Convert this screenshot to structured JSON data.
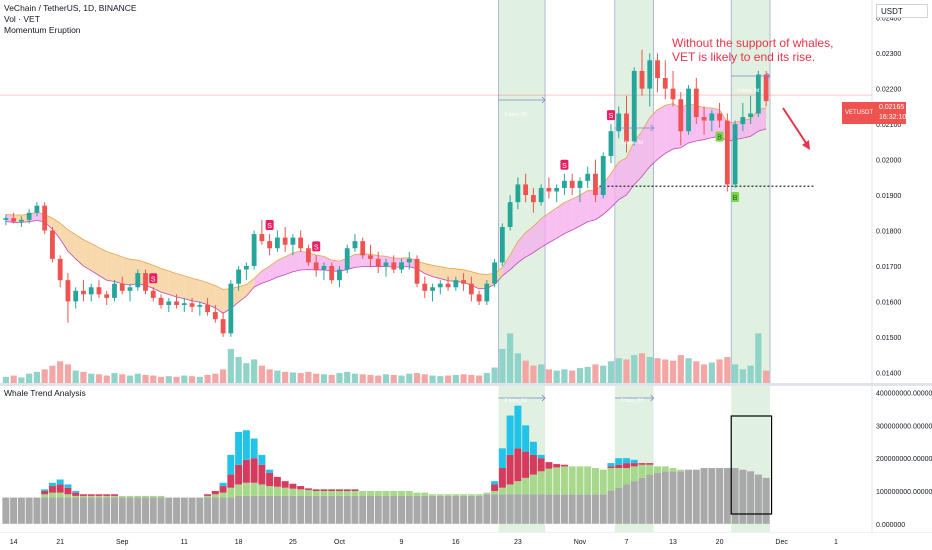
{
  "header": {
    "symbol_line": "VeChain / TetherUS, 1D, BINANCE",
    "indicator_1": "Vol · VET",
    "indicator_2": "Momentum Eruption",
    "currency_button": "USDT"
  },
  "annotation": {
    "line1": "Without the support of whales,",
    "line2": "VET is likely to end its rise."
  },
  "price_tag": {
    "symbol": "VETUSDT",
    "price": "0.02165",
    "countdown": "16:32:10"
  },
  "sub_pane": {
    "title": "Whale Trend Analysis"
  },
  "colors": {
    "up": "#26a69a",
    "down": "#ef5350",
    "cloud": "#f5cf98",
    "cloud_pink": "#f5b0ee",
    "cyan": "#22c3e8",
    "crimson": "#d63a5c",
    "lime": "#a7d88b",
    "gray": "#a9a9a9",
    "zone": "#c8e6c9",
    "annotation": "#e8334a",
    "signal_s": "#e91e63",
    "signal_b": "#7cd64a"
  },
  "chart_data": [
    {
      "type": "candlestick",
      "title": "VeChain / TetherUS, 1D, BINANCE",
      "y_axis_ticks": [
        "0.01400",
        "0.01500",
        "0.01600",
        "0.01700",
        "0.01800",
        "0.01900",
        "0.02000",
        "0.02100",
        "0.02200",
        "0.02300",
        "0.02400"
      ],
      "ylim": [
        0.0137,
        0.0245
      ],
      "x_axis_ticks": [
        "14",
        "21",
        "Sep",
        "11",
        "18",
        "25",
        "Oct",
        "9",
        "16",
        "23",
        "Nov",
        "7",
        "13",
        "20",
        "Dec",
        "1"
      ],
      "last_price": 0.02165,
      "candles": [
        [
          0.0183,
          0.01845,
          0.01815,
          0.01835
        ],
        [
          0.01835,
          0.0185,
          0.0182,
          0.01825
        ],
        [
          0.01825,
          0.0184,
          0.0181,
          0.0183
        ],
        [
          0.0183,
          0.0186,
          0.0182,
          0.0185
        ],
        [
          0.0185,
          0.0188,
          0.0184,
          0.0187
        ],
        [
          0.0187,
          0.0188,
          0.0179,
          0.018
        ],
        [
          0.018,
          0.0181,
          0.0171,
          0.0172
        ],
        [
          0.0172,
          0.0173,
          0.0164,
          0.0166
        ],
        [
          0.0166,
          0.0168,
          0.0154,
          0.016
        ],
        [
          0.016,
          0.0164,
          0.0158,
          0.0163
        ],
        [
          0.0163,
          0.0166,
          0.016,
          0.0162
        ],
        [
          0.0162,
          0.0165,
          0.016,
          0.0164
        ],
        [
          0.0164,
          0.0166,
          0.0161,
          0.0162
        ],
        [
          0.0162,
          0.0163,
          0.0159,
          0.0161
        ],
        [
          0.0161,
          0.0166,
          0.016,
          0.0165
        ],
        [
          0.0165,
          0.0167,
          0.0162,
          0.0163
        ],
        [
          0.0163,
          0.0165,
          0.016,
          0.0164
        ],
        [
          0.0164,
          0.0169,
          0.0163,
          0.0168
        ],
        [
          0.0168,
          0.0169,
          0.0162,
          0.0163
        ],
        [
          0.0163,
          0.0164,
          0.016,
          0.0161
        ],
        [
          0.0161,
          0.0162,
          0.0158,
          0.0159
        ],
        [
          0.0159,
          0.0161,
          0.0157,
          0.016
        ],
        [
          0.016,
          0.0162,
          0.0158,
          0.0159
        ],
        [
          0.0159,
          0.0161,
          0.0157,
          0.01595
        ],
        [
          0.01595,
          0.0161,
          0.0157,
          0.01585
        ],
        [
          0.01585,
          0.016,
          0.0156,
          0.0159
        ],
        [
          0.0159,
          0.0161,
          0.0156,
          0.0157
        ],
        [
          0.0157,
          0.0159,
          0.0154,
          0.0155
        ],
        [
          0.0155,
          0.0157,
          0.015,
          0.0151
        ],
        [
          0.0151,
          0.0166,
          0.015,
          0.0165
        ],
        [
          0.0165,
          0.017,
          0.0163,
          0.0169
        ],
        [
          0.0169,
          0.0171,
          0.0166,
          0.017
        ],
        [
          0.017,
          0.018,
          0.0169,
          0.0179
        ],
        [
          0.0179,
          0.0183,
          0.0176,
          0.0177
        ],
        [
          0.0177,
          0.0179,
          0.0173,
          0.0175
        ],
        [
          0.0175,
          0.018,
          0.0174,
          0.0178
        ],
        [
          0.0178,
          0.0181,
          0.0174,
          0.0176
        ],
        [
          0.0176,
          0.0179,
          0.0173,
          0.0178
        ],
        [
          0.0178,
          0.018,
          0.0174,
          0.0175
        ],
        [
          0.0175,
          0.0176,
          0.017,
          0.0171
        ],
        [
          0.0171,
          0.0173,
          0.0167,
          0.0169
        ],
        [
          0.0169,
          0.0171,
          0.0166,
          0.017
        ],
        [
          0.017,
          0.0171,
          0.0165,
          0.0166
        ],
        [
          0.0166,
          0.017,
          0.0164,
          0.0169
        ],
        [
          0.0169,
          0.0176,
          0.0168,
          0.0175
        ],
        [
          0.0175,
          0.0179,
          0.0174,
          0.0177
        ],
        [
          0.0177,
          0.0178,
          0.0172,
          0.0173
        ],
        [
          0.0173,
          0.0176,
          0.017,
          0.0172
        ],
        [
          0.0172,
          0.0174,
          0.0168,
          0.017
        ],
        [
          0.017,
          0.0172,
          0.0167,
          0.0171
        ],
        [
          0.0171,
          0.0173,
          0.0168,
          0.0169
        ],
        [
          0.0169,
          0.0172,
          0.0168,
          0.0171
        ],
        [
          0.0171,
          0.0174,
          0.0169,
          0.0172
        ],
        [
          0.0172,
          0.0173,
          0.0164,
          0.0165
        ],
        [
          0.0165,
          0.0167,
          0.0161,
          0.0163
        ],
        [
          0.0163,
          0.0165,
          0.016,
          0.0164
        ],
        [
          0.0164,
          0.0166,
          0.0162,
          0.0165
        ],
        [
          0.0165,
          0.0167,
          0.0163,
          0.0164
        ],
        [
          0.0164,
          0.0167,
          0.0163,
          0.0166
        ],
        [
          0.0166,
          0.0168,
          0.0163,
          0.0165
        ],
        [
          0.0165,
          0.0167,
          0.016,
          0.0162
        ],
        [
          0.0162,
          0.0163,
          0.0159,
          0.016
        ],
        [
          0.016,
          0.0166,
          0.0159,
          0.0165
        ],
        [
          0.0165,
          0.0172,
          0.0164,
          0.0171
        ],
        [
          0.0171,
          0.0182,
          0.017,
          0.0181
        ],
        [
          0.0181,
          0.019,
          0.018,
          0.0188
        ],
        [
          0.0188,
          0.0195,
          0.0186,
          0.0193
        ],
        [
          0.0193,
          0.0196,
          0.0188,
          0.019
        ],
        [
          0.019,
          0.0192,
          0.0185,
          0.0188
        ],
        [
          0.0188,
          0.0193,
          0.0187,
          0.0192
        ],
        [
          0.0192,
          0.0195,
          0.0189,
          0.0191
        ],
        [
          0.0191,
          0.0193,
          0.0188,
          0.0192
        ],
        [
          0.0192,
          0.0196,
          0.019,
          0.0194
        ],
        [
          0.0194,
          0.0196,
          0.019,
          0.0192
        ],
        [
          0.0192,
          0.0195,
          0.0188,
          0.0194
        ],
        [
          0.0194,
          0.0198,
          0.0192,
          0.0196
        ],
        [
          0.0196,
          0.02,
          0.0188,
          0.019
        ],
        [
          0.019,
          0.0202,
          0.0189,
          0.0201
        ],
        [
          0.0201,
          0.021,
          0.0199,
          0.0208
        ],
        [
          0.0208,
          0.0215,
          0.0206,
          0.0213
        ],
        [
          0.0213,
          0.0218,
          0.0202,
          0.0205
        ],
        [
          0.0205,
          0.0226,
          0.0204,
          0.0225
        ],
        [
          0.0225,
          0.0231,
          0.0218,
          0.022
        ],
        [
          0.022,
          0.023,
          0.0215,
          0.0228
        ],
        [
          0.0228,
          0.023,
          0.0219,
          0.0223
        ],
        [
          0.0223,
          0.0228,
          0.0217,
          0.022
        ],
        [
          0.022,
          0.0225,
          0.0215,
          0.0217
        ],
        [
          0.0217,
          0.0219,
          0.0204,
          0.0208
        ],
        [
          0.0208,
          0.0221,
          0.0207,
          0.022
        ],
        [
          0.022,
          0.0223,
          0.021,
          0.0212
        ],
        [
          0.0212,
          0.0215,
          0.0207,
          0.0211
        ],
        [
          0.0211,
          0.0214,
          0.0208,
          0.0213
        ],
        [
          0.0213,
          0.0216,
          0.0209,
          0.0211
        ],
        [
          0.0211,
          0.0213,
          0.0191,
          0.0193
        ],
        [
          0.0193,
          0.0211,
          0.0192,
          0.021
        ],
        [
          0.021,
          0.0216,
          0.0208,
          0.0212
        ],
        [
          0.0212,
          0.0218,
          0.021,
          0.0213
        ],
        [
          0.0213,
          0.0225,
          0.0212,
          0.0224
        ],
        [
          0.0224,
          0.0225,
          0.0215,
          0.02165
        ]
      ],
      "volume": [
        0.1,
        0.12,
        0.09,
        0.15,
        0.18,
        0.22,
        0.28,
        0.35,
        0.3,
        0.2,
        0.18,
        0.15,
        0.14,
        0.12,
        0.16,
        0.14,
        0.12,
        0.15,
        0.13,
        0.12,
        0.1,
        0.11,
        0.1,
        0.12,
        0.11,
        0.1,
        0.13,
        0.15,
        0.22,
        0.55,
        0.42,
        0.32,
        0.38,
        0.28,
        0.22,
        0.2,
        0.18,
        0.17,
        0.16,
        0.18,
        0.15,
        0.14,
        0.13,
        0.16,
        0.18,
        0.15,
        0.14,
        0.13,
        0.12,
        0.14,
        0.13,
        0.12,
        0.15,
        0.16,
        0.14,
        0.12,
        0.11,
        0.12,
        0.13,
        0.14,
        0.13,
        0.12,
        0.16,
        0.25,
        0.55,
        0.8,
        0.48,
        0.36,
        0.28,
        0.3,
        0.22,
        0.2,
        0.22,
        0.2,
        0.24,
        0.26,
        0.3,
        0.28,
        0.35,
        0.4,
        0.38,
        0.45,
        0.48,
        0.42,
        0.4,
        0.38,
        0.36,
        0.45,
        0.4,
        0.35,
        0.3,
        0.33,
        0.38,
        0.42,
        0.3,
        0.22,
        0.28,
        0.8,
        0.2
      ],
      "signals": [
        {
          "label": "S",
          "index": 19
        },
        {
          "label": "S",
          "index": 34
        },
        {
          "label": "S",
          "index": 40
        },
        {
          "label": "S",
          "index": 72
        },
        {
          "label": "S",
          "index": 78
        },
        {
          "label": "B",
          "index": 92
        },
        {
          "label": "B",
          "index": 94
        }
      ],
      "highlight_zones": [
        [
          64,
          69
        ],
        [
          79,
          83
        ],
        [
          94,
          98
        ]
      ],
      "support_level": 0.01925,
      "zone_labels": [
        "0 bars, 0d",
        "0 bars, 0d",
        "0 bars, 0d"
      ]
    },
    {
      "type": "stacked_bar",
      "title": "Whale Trend Analysis",
      "y_axis_ticks": [
        "0.000000",
        "100000000.000000",
        "200000000.000000",
        "300000000.000000",
        "400000000.000000"
      ],
      "ylim": [
        -25000000,
        420000000
      ],
      "series_colors": [
        "#a9a9a9",
        "#a7d88b",
        "#d63a5c",
        "#22c3e8"
      ],
      "gray": [
        80,
        80,
        80,
        80,
        80,
        80,
        80,
        80,
        80,
        80,
        80,
        80,
        80,
        80,
        80,
        80,
        80,
        80,
        80,
        80,
        80,
        80,
        80,
        80,
        80,
        80,
        80,
        80,
        80,
        80,
        85,
        85,
        85,
        85,
        85,
        85,
        85,
        85,
        85,
        85,
        85,
        85,
        85,
        85,
        85,
        85,
        85,
        85,
        85,
        85,
        85,
        85,
        85,
        85,
        85,
        85,
        85,
        85,
        85,
        85,
        85,
        85,
        90,
        90,
        90,
        90,
        90,
        90,
        90,
        90,
        90,
        90,
        90,
        90,
        90,
        90,
        90,
        90,
        100,
        110,
        120,
        130,
        140,
        150,
        155,
        160,
        160,
        160,
        165,
        165,
        170,
        170,
        170,
        170,
        170,
        165,
        160,
        150,
        140
      ],
      "lime": [
        0,
        0,
        0,
        0,
        0,
        10,
        15,
        15,
        10,
        5,
        5,
        5,
        5,
        5,
        5,
        5,
        5,
        5,
        5,
        5,
        5,
        0,
        0,
        0,
        0,
        0,
        5,
        10,
        15,
        30,
        35,
        40,
        40,
        35,
        30,
        28,
        25,
        22,
        20,
        18,
        15,
        15,
        15,
        15,
        15,
        15,
        15,
        15,
        15,
        15,
        15,
        15,
        15,
        10,
        10,
        5,
        5,
        5,
        5,
        5,
        5,
        5,
        5,
        10,
        20,
        30,
        40,
        50,
        60,
        70,
        78,
        82,
        85,
        85,
        85,
        85,
        80,
        75,
        70,
        60,
        50,
        45,
        40,
        30,
        20,
        15,
        10,
        5,
        0,
        0,
        0,
        0,
        0,
        0,
        0,
        0,
        0,
        0,
        0
      ],
      "crimson": [
        0,
        0,
        0,
        0,
        0,
        10,
        20,
        25,
        20,
        10,
        5,
        5,
        5,
        5,
        5,
        0,
        0,
        0,
        0,
        0,
        0,
        0,
        0,
        0,
        0,
        0,
        5,
        10,
        20,
        40,
        60,
        70,
        75,
        60,
        40,
        30,
        20,
        15,
        10,
        5,
        5,
        5,
        5,
        5,
        5,
        5,
        0,
        0,
        0,
        0,
        0,
        0,
        0,
        0,
        0,
        0,
        0,
        0,
        0,
        0,
        0,
        0,
        0,
        20,
        60,
        90,
        100,
        80,
        60,
        40,
        20,
        10,
        5,
        0,
        0,
        0,
        0,
        0,
        5,
        10,
        15,
        10,
        5,
        5,
        0,
        0,
        0,
        0,
        0,
        0,
        0,
        0,
        0,
        0,
        0,
        0,
        0,
        0,
        0
      ],
      "cyan": [
        0,
        0,
        0,
        0,
        0,
        5,
        10,
        15,
        10,
        5,
        0,
        0,
        0,
        0,
        0,
        0,
        0,
        0,
        0,
        0,
        0,
        0,
        0,
        0,
        0,
        0,
        0,
        0,
        10,
        60,
        100,
        90,
        60,
        30,
        10,
        0,
        0,
        0,
        0,
        0,
        0,
        0,
        0,
        0,
        0,
        0,
        0,
        0,
        0,
        0,
        0,
        0,
        0,
        0,
        0,
        0,
        0,
        0,
        0,
        0,
        0,
        0,
        0,
        10,
        60,
        120,
        130,
        80,
        40,
        10,
        0,
        0,
        0,
        0,
        0,
        0,
        0,
        0,
        10,
        20,
        15,
        10,
        0,
        0,
        0,
        0,
        0,
        0,
        0,
        0,
        0,
        0,
        0,
        0,
        0,
        0,
        0,
        0,
        0
      ],
      "value_unit": "millions"
    }
  ]
}
